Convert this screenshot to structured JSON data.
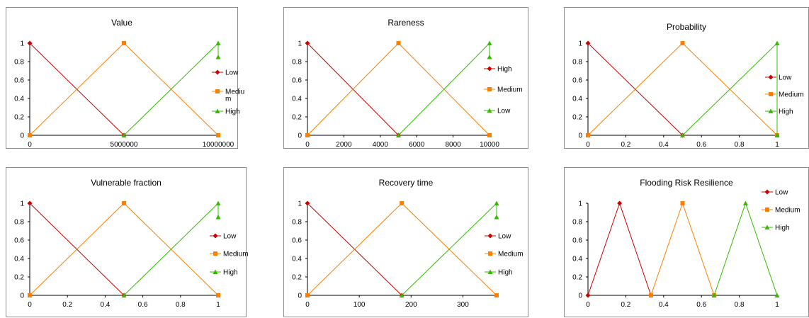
{
  "chart_data": [
    {
      "type": "line",
      "title": "Value",
      "x_ticks": [
        0,
        5000000,
        10000000
      ],
      "x_tick_labels": [
        "0",
        "5000000",
        "10000000"
      ],
      "xlim": [
        0,
        10000000
      ],
      "y_ticks": [
        0,
        0.2,
        0.4,
        0.6,
        0.8,
        1
      ],
      "y_tick_labels": [
        "0",
        "0.2",
        "0.4",
        "0.6",
        "0.8",
        "1"
      ],
      "ylim": [
        0,
        1
      ],
      "legend_position": "right",
      "series": [
        {
          "name": "Low",
          "marker": "diamond",
          "color": "#cc0000",
          "x": [
            0,
            5000000
          ],
          "y": [
            1,
            0
          ]
        },
        {
          "name": "Mediu\nm",
          "marker": "square",
          "color": "#ff8000",
          "x": [
            0,
            5000000,
            10000000
          ],
          "y": [
            0,
            1,
            0
          ]
        },
        {
          "name": "High",
          "marker": "triangle",
          "color": "#33bb00",
          "x": [
            5000000,
            10000000,
            10000000
          ],
          "y": [
            0,
            1,
            0.85
          ]
        }
      ]
    },
    {
      "type": "line",
      "title": "Rareness",
      "x_ticks": [
        0,
        2000,
        4000,
        6000,
        8000,
        10000
      ],
      "x_tick_labels": [
        "0",
        "2000",
        "4000",
        "6000",
        "8000",
        "10000"
      ],
      "xlim": [
        0,
        10000
      ],
      "y_ticks": [
        0,
        0.2,
        0.4,
        0.6,
        0.8,
        1
      ],
      "y_tick_labels": [
        "0",
        "0.2",
        "0.4",
        "0.6",
        "0.8",
        "1"
      ],
      "ylim": [
        0,
        1
      ],
      "legend_position": "right",
      "series": [
        {
          "name": "High",
          "marker": "diamond",
          "color": "#cc0000",
          "x": [
            0,
            5000
          ],
          "y": [
            1,
            0
          ]
        },
        {
          "name": "Medium",
          "marker": "square",
          "color": "#ff8000",
          "x": [
            0,
            5000,
            10000
          ],
          "y": [
            0,
            1,
            0
          ]
        },
        {
          "name": "Low",
          "marker": "triangle",
          "color": "#33bb00",
          "x": [
            5000,
            10000,
            10000
          ],
          "y": [
            0,
            1,
            0.85
          ]
        }
      ]
    },
    {
      "type": "line",
      "title": "Probability",
      "x_ticks": [
        0,
        0.2,
        0.4,
        0.6,
        0.8,
        1
      ],
      "x_tick_labels": [
        "0",
        "0.2",
        "0.4",
        "0.6",
        "0.8",
        "1"
      ],
      "xlim": [
        0,
        1
      ],
      "y_ticks": [
        0,
        0.2,
        0.4,
        0.6,
        0.8,
        1
      ],
      "y_tick_labels": [
        "0",
        "0.2",
        "0.4",
        "0.6",
        "0.8",
        "1"
      ],
      "ylim": [
        0,
        1
      ],
      "legend_position": "right",
      "series": [
        {
          "name": "Low",
          "marker": "diamond",
          "color": "#cc0000",
          "x": [
            0,
            0.5
          ],
          "y": [
            1,
            0
          ]
        },
        {
          "name": "Medium",
          "marker": "square",
          "color": "#ff8000",
          "x": [
            0,
            0.5,
            1
          ],
          "y": [
            0,
            1,
            0
          ]
        },
        {
          "name": "High",
          "marker": "triangle",
          "color": "#33bb00",
          "x": [
            0.5,
            1,
            1
          ],
          "y": [
            0,
            1,
            0
          ]
        }
      ]
    },
    {
      "type": "line",
      "title": "Vulnerable fraction",
      "x_ticks": [
        0,
        0.2,
        0.4,
        0.6,
        0.8,
        1
      ],
      "x_tick_labels": [
        "0",
        "0.2",
        "0.4",
        "0.6",
        "0.8",
        "1"
      ],
      "xlim": [
        0,
        1
      ],
      "y_ticks": [
        0,
        0.2,
        0.4,
        0.6,
        0.8,
        1
      ],
      "y_tick_labels": [
        "0",
        "0.2",
        "0.4",
        "0.6",
        "0.8",
        "1"
      ],
      "ylim": [
        0,
        1
      ],
      "legend_position": "right",
      "series": [
        {
          "name": "Low",
          "marker": "diamond",
          "color": "#cc0000",
          "x": [
            0,
            0.5
          ],
          "y": [
            1,
            0
          ]
        },
        {
          "name": "Medium",
          "marker": "square",
          "color": "#ff8000",
          "x": [
            0,
            0.5,
            1
          ],
          "y": [
            0,
            1,
            0
          ]
        },
        {
          "name": "High",
          "marker": "triangle",
          "color": "#33bb00",
          "x": [
            0.5,
            1,
            1
          ],
          "y": [
            0,
            1,
            0.85
          ]
        }
      ]
    },
    {
      "type": "line",
      "title": "Recovery time",
      "x_ticks": [
        0,
        100,
        200,
        300
      ],
      "x_tick_labels": [
        "0",
        "100",
        "200",
        "300"
      ],
      "xlim": [
        0,
        365
      ],
      "y_ticks": [
        0,
        0.2,
        0.4,
        0.6,
        0.8,
        1
      ],
      "y_tick_labels": [
        "0",
        "0.2",
        "0.4",
        "0.6",
        "0.8",
        "1"
      ],
      "ylim": [
        0,
        1
      ],
      "legend_position": "right",
      "series": [
        {
          "name": "Low",
          "marker": "diamond",
          "color": "#cc0000",
          "x": [
            0,
            182
          ],
          "y": [
            1,
            0
          ]
        },
        {
          "name": "Medium",
          "marker": "square",
          "color": "#ff8000",
          "x": [
            0,
            182,
            365
          ],
          "y": [
            0,
            1,
            0
          ]
        },
        {
          "name": "High",
          "marker": "triangle",
          "color": "#33bb00",
          "x": [
            182,
            365,
            365
          ],
          "y": [
            0,
            1,
            0.85
          ]
        }
      ]
    },
    {
      "type": "line",
      "title": "Flooding Risk Resilience",
      "x_ticks": [
        0,
        0.2,
        0.4,
        0.6,
        0.8,
        1
      ],
      "x_tick_labels": [
        "0",
        "0.2",
        "0.4",
        "0.6",
        "0.8",
        "1"
      ],
      "xlim": [
        0,
        1
      ],
      "y_ticks": [
        0,
        0.2,
        0.4,
        0.6,
        0.8,
        1
      ],
      "y_tick_labels": [
        "0",
        "0.2",
        "0.4",
        "0.6",
        "0.8",
        "1"
      ],
      "ylim": [
        0,
        1
      ],
      "legend_position": "top-right",
      "series": [
        {
          "name": "Low",
          "marker": "diamond",
          "color": "#cc0000",
          "x": [
            0,
            0.167,
            0.333
          ],
          "y": [
            0,
            1,
            0
          ]
        },
        {
          "name": "Medium",
          "marker": "square",
          "color": "#ff8000",
          "x": [
            0.333,
            0.5,
            0.667
          ],
          "y": [
            0,
            1,
            0
          ]
        },
        {
          "name": "High",
          "marker": "triangle",
          "color": "#33bb00",
          "x": [
            0.667,
            0.833,
            1
          ],
          "y": [
            0,
            1,
            0
          ]
        }
      ]
    }
  ]
}
